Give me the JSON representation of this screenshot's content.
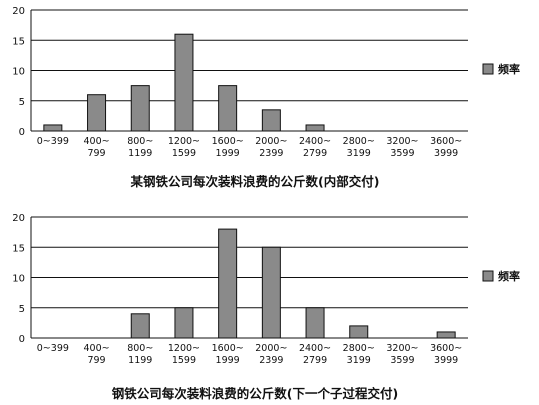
{
  "chart_data": [
    {
      "type": "bar",
      "title": "某钢铁公司每次装料浪费的公斤数(内部交付)",
      "categories": [
        [
          "0~399"
        ],
        [
          "400~",
          "799"
        ],
        [
          "800~",
          "1199"
        ],
        [
          "1200~",
          "1599"
        ],
        [
          "1600~",
          "1999"
        ],
        [
          "2000~",
          "2399"
        ],
        [
          "2400~",
          "2799"
        ],
        [
          "2800~",
          "3199"
        ],
        [
          "3200~",
          "3599"
        ],
        [
          "3600~",
          "3999"
        ]
      ],
      "series": [
        {
          "name": "频率",
          "values": [
            1,
            6,
            7.5,
            16,
            7.5,
            3.5,
            1,
            0,
            0,
            0
          ]
        }
      ],
      "ylim": [
        0,
        20
      ],
      "yticks": [
        "0",
        "5",
        "10",
        "15",
        "20"
      ],
      "grid": true,
      "legend": "right",
      "bar_color": "#8a8a8a"
    },
    {
      "type": "bar",
      "title": "钢铁公司每次装料浪费的公斤数(下一个子过程交付)",
      "categories": [
        [
          "0~399"
        ],
        [
          "400~",
          "799"
        ],
        [
          "800~",
          "1199"
        ],
        [
          "1200~",
          "1599"
        ],
        [
          "1600~",
          "1999"
        ],
        [
          "2000~",
          "2399"
        ],
        [
          "2400~",
          "2799"
        ],
        [
          "2800~",
          "3199"
        ],
        [
          "3200~",
          "3599"
        ],
        [
          "3600~",
          "3999"
        ]
      ],
      "series": [
        {
          "name": "频率",
          "values": [
            0,
            0,
            4,
            5,
            18,
            15,
            5,
            2,
            0,
            1
          ]
        }
      ],
      "ylim": [
        0,
        20
      ],
      "yticks": [
        "0",
        "5",
        "10",
        "15",
        "20"
      ],
      "grid": true,
      "legend": "right",
      "bar_color": "#8a8a8a"
    }
  ]
}
